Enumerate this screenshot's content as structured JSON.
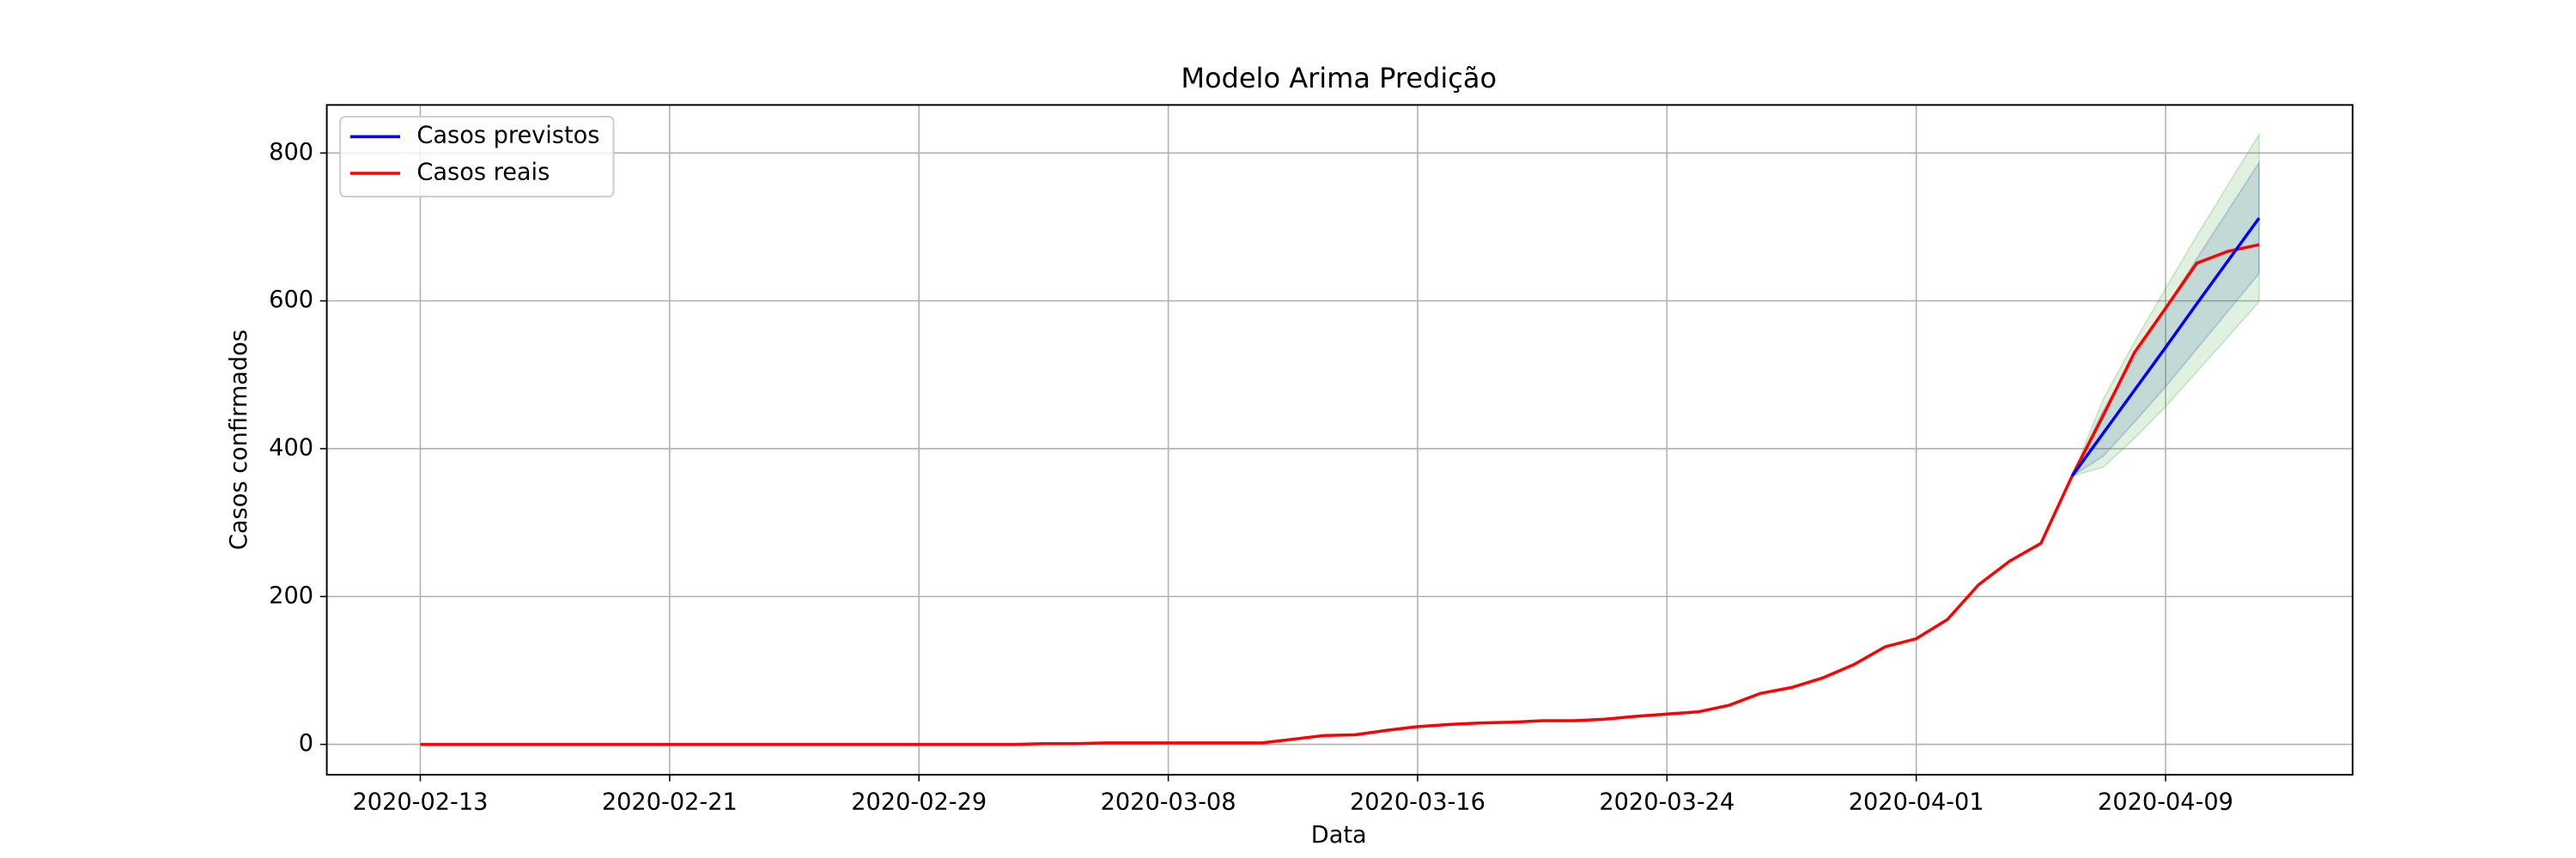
{
  "chart_data": {
    "type": "line",
    "title": "Modelo Arima Predição",
    "xlabel": "Data",
    "ylabel": "Casos confirmados",
    "x": [
      "2020-02-13",
      "2020-02-14",
      "2020-02-15",
      "2020-02-16",
      "2020-02-17",
      "2020-02-18",
      "2020-02-19",
      "2020-02-20",
      "2020-02-21",
      "2020-02-22",
      "2020-02-23",
      "2020-02-24",
      "2020-02-25",
      "2020-02-26",
      "2020-02-27",
      "2020-02-28",
      "2020-02-29",
      "2020-03-01",
      "2020-03-02",
      "2020-03-03",
      "2020-03-04",
      "2020-03-05",
      "2020-03-06",
      "2020-03-07",
      "2020-03-08",
      "2020-03-09",
      "2020-03-10",
      "2020-03-11",
      "2020-03-12",
      "2020-03-13",
      "2020-03-14",
      "2020-03-15",
      "2020-03-16",
      "2020-03-17",
      "2020-03-18",
      "2020-03-19",
      "2020-03-20",
      "2020-03-21",
      "2020-03-22",
      "2020-03-23",
      "2020-03-24",
      "2020-03-25",
      "2020-03-26",
      "2020-03-27",
      "2020-03-28",
      "2020-03-29",
      "2020-03-30",
      "2020-03-31",
      "2020-04-01",
      "2020-04-02",
      "2020-04-03",
      "2020-04-04",
      "2020-04-05",
      "2020-04-06",
      "2020-04-07",
      "2020-04-08",
      "2020-04-09",
      "2020-04-10",
      "2020-04-11",
      "2020-04-12"
    ],
    "series": [
      {
        "name": "Casos previstos",
        "color": "#0000ff",
        "values": [
          null,
          null,
          null,
          null,
          null,
          null,
          null,
          null,
          null,
          null,
          null,
          null,
          null,
          null,
          null,
          null,
          null,
          null,
          null,
          null,
          null,
          null,
          null,
          null,
          null,
          null,
          null,
          null,
          null,
          null,
          null,
          null,
          null,
          null,
          null,
          null,
          null,
          null,
          null,
          null,
          null,
          null,
          null,
          null,
          null,
          null,
          null,
          null,
          null,
          null,
          null,
          null,
          null,
          363,
          421,
          479,
          537,
          596,
          654,
          712
        ]
      },
      {
        "name": "Casos reais",
        "color": "#ff0000",
        "values": [
          0,
          0,
          0,
          0,
          0,
          0,
          0,
          0,
          0,
          0,
          0,
          0,
          0,
          0,
          0,
          0,
          0,
          0,
          0,
          0,
          1,
          1,
          2,
          2,
          2,
          2,
          2,
          2,
          7,
          12,
          13,
          19,
          24,
          27,
          29,
          30,
          32,
          32,
          34,
          38,
          41,
          44,
          53,
          69,
          77,
          90,
          108,
          132,
          143,
          169,
          216,
          248,
          272,
          363,
          445,
          530,
          590,
          651,
          667,
          676
        ]
      }
    ],
    "intervals": [
      {
        "color": "#2ca02c",
        "lower": [
          null,
          null,
          null,
          null,
          null,
          null,
          null,
          null,
          null,
          null,
          null,
          null,
          null,
          null,
          null,
          null,
          null,
          null,
          null,
          null,
          null,
          null,
          null,
          null,
          null,
          null,
          null,
          null,
          null,
          null,
          null,
          null,
          null,
          null,
          null,
          null,
          null,
          null,
          null,
          null,
          null,
          null,
          null,
          null,
          null,
          null,
          null,
          null,
          null,
          null,
          null,
          null,
          null,
          363,
          375,
          414,
          457,
          504,
          551,
          599
        ],
        "upper": [
          null,
          null,
          null,
          null,
          null,
          null,
          null,
          null,
          null,
          null,
          null,
          null,
          null,
          null,
          null,
          null,
          null,
          null,
          null,
          null,
          null,
          null,
          null,
          null,
          null,
          null,
          null,
          null,
          null,
          null,
          null,
          null,
          null,
          null,
          null,
          null,
          null,
          null,
          null,
          null,
          null,
          null,
          null,
          null,
          null,
          null,
          null,
          null,
          null,
          null,
          null,
          null,
          null,
          363,
          467,
          544,
          617,
          688,
          757,
          825
        ]
      },
      {
        "color": "#1f4fa0",
        "lower": [
          null,
          null,
          null,
          null,
          null,
          null,
          null,
          null,
          null,
          null,
          null,
          null,
          null,
          null,
          null,
          null,
          null,
          null,
          null,
          null,
          null,
          null,
          null,
          null,
          null,
          null,
          null,
          null,
          null,
          null,
          null,
          null,
          null,
          null,
          null,
          null,
          null,
          null,
          null,
          null,
          null,
          null,
          null,
          null,
          null,
          null,
          null,
          null,
          null,
          null,
          null,
          null,
          null,
          363,
          390,
          436,
          484,
          535,
          586,
          637
        ],
        "upper": [
          null,
          null,
          null,
          null,
          null,
          null,
          null,
          null,
          null,
          null,
          null,
          null,
          null,
          null,
          null,
          null,
          null,
          null,
          null,
          null,
          null,
          null,
          null,
          null,
          null,
          null,
          null,
          null,
          null,
          null,
          null,
          null,
          null,
          null,
          null,
          null,
          null,
          null,
          null,
          null,
          null,
          null,
          null,
          null,
          null,
          null,
          null,
          null,
          null,
          null,
          null,
          null,
          null,
          363,
          452,
          522,
          590,
          657,
          722,
          787
        ]
      }
    ],
    "xlim": [
      "2020-02-10",
      "2020-04-15"
    ],
    "xticks": [
      "2020-02-13",
      "2020-02-21",
      "2020-02-29",
      "2020-03-08",
      "2020-03-16",
      "2020-03-24",
      "2020-04-01",
      "2020-04-09"
    ],
    "ylim": [
      -41,
      865
    ],
    "yticks": [
      0,
      200,
      400,
      600,
      800
    ],
    "grid": true,
    "legend": "upper-left"
  }
}
